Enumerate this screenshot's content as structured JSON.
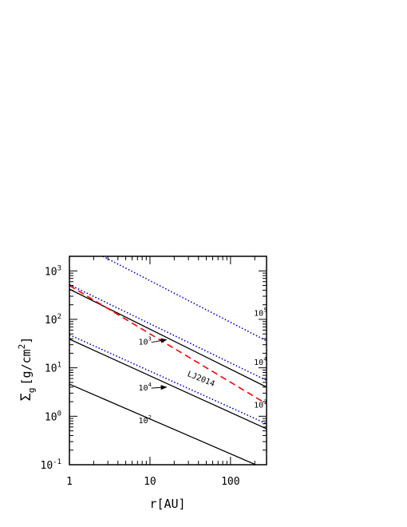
{
  "chart_data": {
    "type": "line",
    "xscale": "log",
    "yscale": "log",
    "xlim": [
      1,
      280
    ],
    "ylim": [
      0.1,
      2000
    ],
    "xlabel": "r[AU]",
    "ylabel": {
      "base": "Σ",
      "sub": "g",
      "units": "[g/cm",
      "sup": "2",
      "close": "]"
    },
    "x_ticks": [
      {
        "value": 1,
        "label": "1"
      },
      {
        "value": 10,
        "label": "10"
      },
      {
        "value": 100,
        "label": "100"
      }
    ],
    "y_ticks": [
      {
        "value": 0.1,
        "base": "10",
        "exp": "-1"
      },
      {
        "value": 1,
        "base": "10",
        "exp": "0"
      },
      {
        "value": 10,
        "base": "10",
        "exp": "1"
      },
      {
        "value": 100,
        "base": "10",
        "exp": "2"
      },
      {
        "value": 1000,
        "base": "10",
        "exp": "3"
      }
    ],
    "series": [
      {
        "style": "solid",
        "color": "#000000",
        "x": [
          1,
          280
        ],
        "y": [
          4.6,
          0.08
        ]
      },
      {
        "style": "solid",
        "color": "#000000",
        "x": [
          1,
          280
        ],
        "y": [
          39,
          0.55
        ]
      },
      {
        "style": "solid",
        "color": "#000000",
        "x": [
          1,
          280
        ],
        "y": [
          420,
          4.0
        ]
      },
      {
        "style": "dotted",
        "color": "#0000cc",
        "x": [
          1,
          280
        ],
        "y": [
          48,
          0.7
        ]
      },
      {
        "style": "dotted",
        "color": "#0000cc",
        "x": [
          1,
          280
        ],
        "y": [
          520,
          5.5
        ]
      },
      {
        "style": "dotted",
        "color": "#0000cc",
        "x": [
          2.6,
          280
        ],
        "y": [
          2000,
          36
        ]
      },
      {
        "name": "LJ2014",
        "style": "dashed",
        "color": "#ff0000",
        "x": [
          1,
          280
        ],
        "y": [
          500,
          1.8
        ]
      }
    ],
    "annotations": [
      {
        "base": "10",
        "exp": "5",
        "x": 195,
        "y": 118,
        "arrow": false
      },
      {
        "base": "10",
        "exp": "4",
        "x": 195,
        "y": 11.5,
        "arrow": false
      },
      {
        "base": "10",
        "exp": "3",
        "x": 195,
        "y": 1.5,
        "arrow": false
      },
      {
        "base": "10",
        "exp": "3",
        "x": 7.2,
        "y": 30,
        "arrow": true,
        "arrow_to_x": 16,
        "arrow_to_y": 38
      },
      {
        "base": "10",
        "exp": "4",
        "x": 7.2,
        "y": 3.4,
        "arrow": true,
        "arrow_to_x": 16,
        "arrow_to_y": 4.0
      },
      {
        "base": "10",
        "exp": "2",
        "x": 7.2,
        "y": 0.72,
        "arrow": false
      },
      {
        "text": "LJ2014",
        "x": 42,
        "y": 5.3,
        "rotate": 22
      }
    ]
  }
}
